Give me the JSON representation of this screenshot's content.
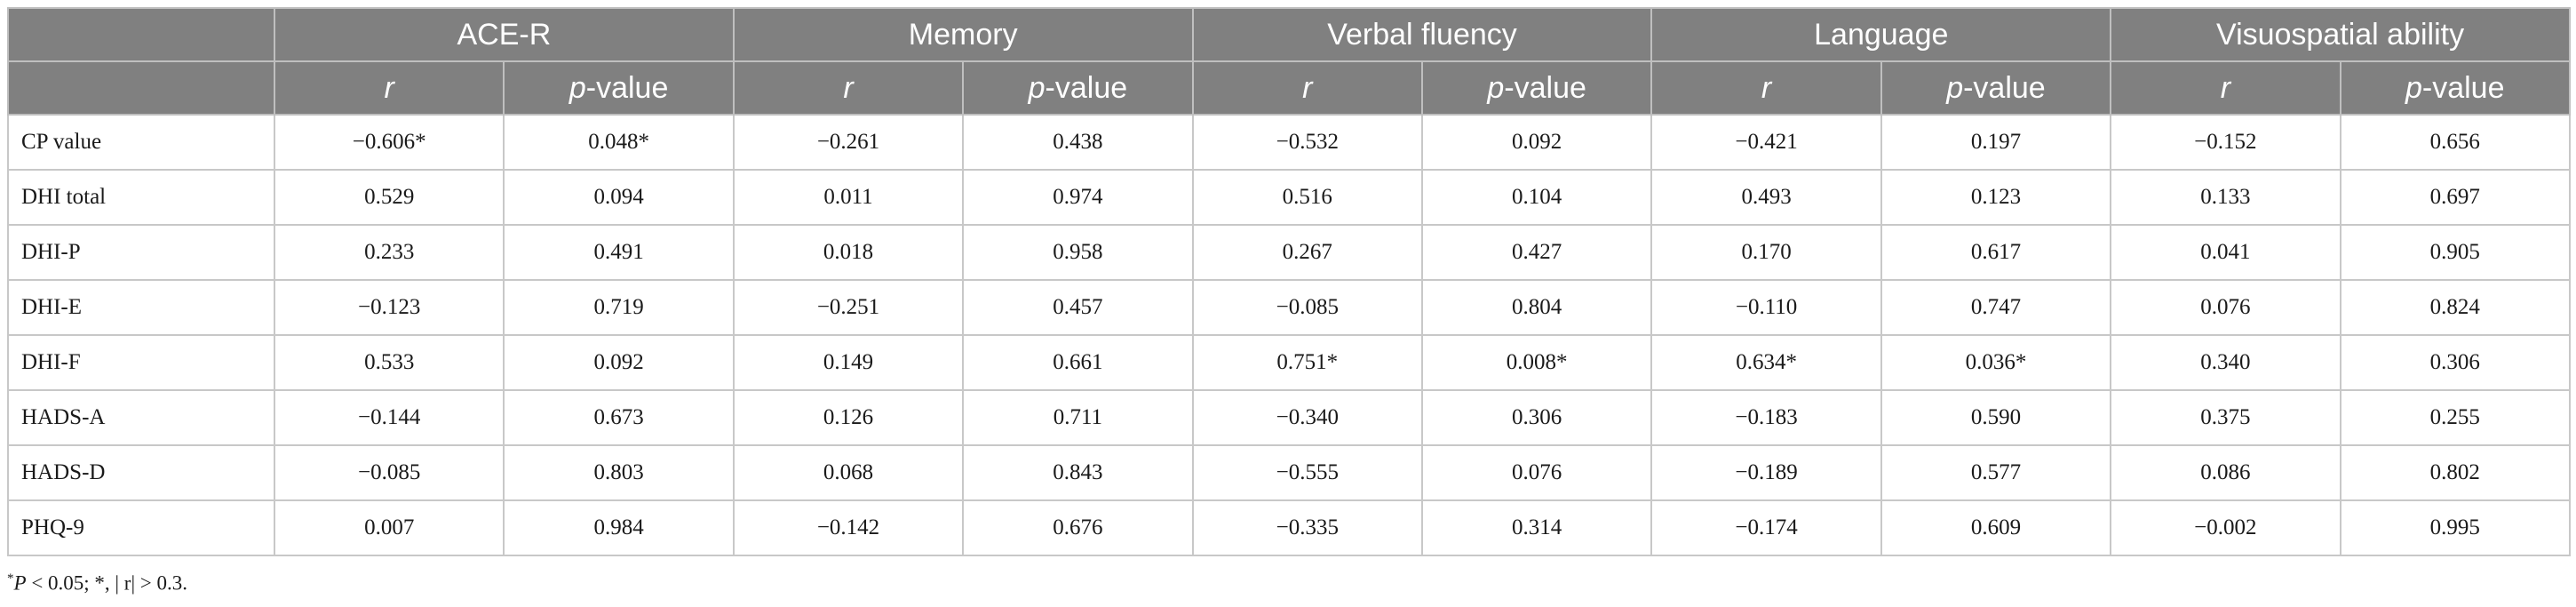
{
  "table": {
    "group_headers": [
      "ACE-R",
      "Memory",
      "Verbal fluency",
      "Language",
      "Visuospatial ability"
    ],
    "sub_headers": {
      "r": "r",
      "p_italic": "p",
      "p_rest": "-value"
    },
    "rows": [
      {
        "label": "CP value",
        "cells": [
          "−0.606*",
          "0.048*",
          "−0.261",
          "0.438",
          "−0.532",
          "0.092",
          "−0.421",
          "0.197",
          "−0.152",
          "0.656"
        ]
      },
      {
        "label": "DHI total",
        "cells": [
          "0.529",
          "0.094",
          "0.011",
          "0.974",
          "0.516",
          "0.104",
          "0.493",
          "0.123",
          "0.133",
          "0.697"
        ]
      },
      {
        "label": "DHI-P",
        "cells": [
          "0.233",
          "0.491",
          "0.018",
          "0.958",
          "0.267",
          "0.427",
          "0.170",
          "0.617",
          "0.041",
          "0.905"
        ]
      },
      {
        "label": "DHI-E",
        "cells": [
          "−0.123",
          "0.719",
          "−0.251",
          "0.457",
          "−0.085",
          "0.804",
          "−0.110",
          "0.747",
          "0.076",
          "0.824"
        ]
      },
      {
        "label": "DHI-F",
        "cells": [
          "0.533",
          "0.092",
          "0.149",
          "0.661",
          "0.751*",
          "0.008*",
          "0.634*",
          "0.036*",
          "0.340",
          "0.306"
        ]
      },
      {
        "label": "HADS-A",
        "cells": [
          "−0.144",
          "0.673",
          "0.126",
          "0.711",
          "−0.340",
          "0.306",
          "−0.183",
          "0.590",
          "0.375",
          "0.255"
        ]
      },
      {
        "label": "HADS-D",
        "cells": [
          "−0.085",
          "0.803",
          "0.068",
          "0.843",
          "−0.555",
          "0.076",
          "−0.189",
          "0.577",
          "0.086",
          "0.802"
        ]
      },
      {
        "label": "PHQ-9",
        "cells": [
          "0.007",
          "0.984",
          "−0.142",
          "0.676",
          "−0.335",
          "0.314",
          "−0.174",
          "0.609",
          "−0.002",
          "0.995"
        ]
      }
    ]
  },
  "footnote": {
    "star": "*",
    "p": "P",
    "text": " < 0.05; *, | r|  > 0.3."
  }
}
